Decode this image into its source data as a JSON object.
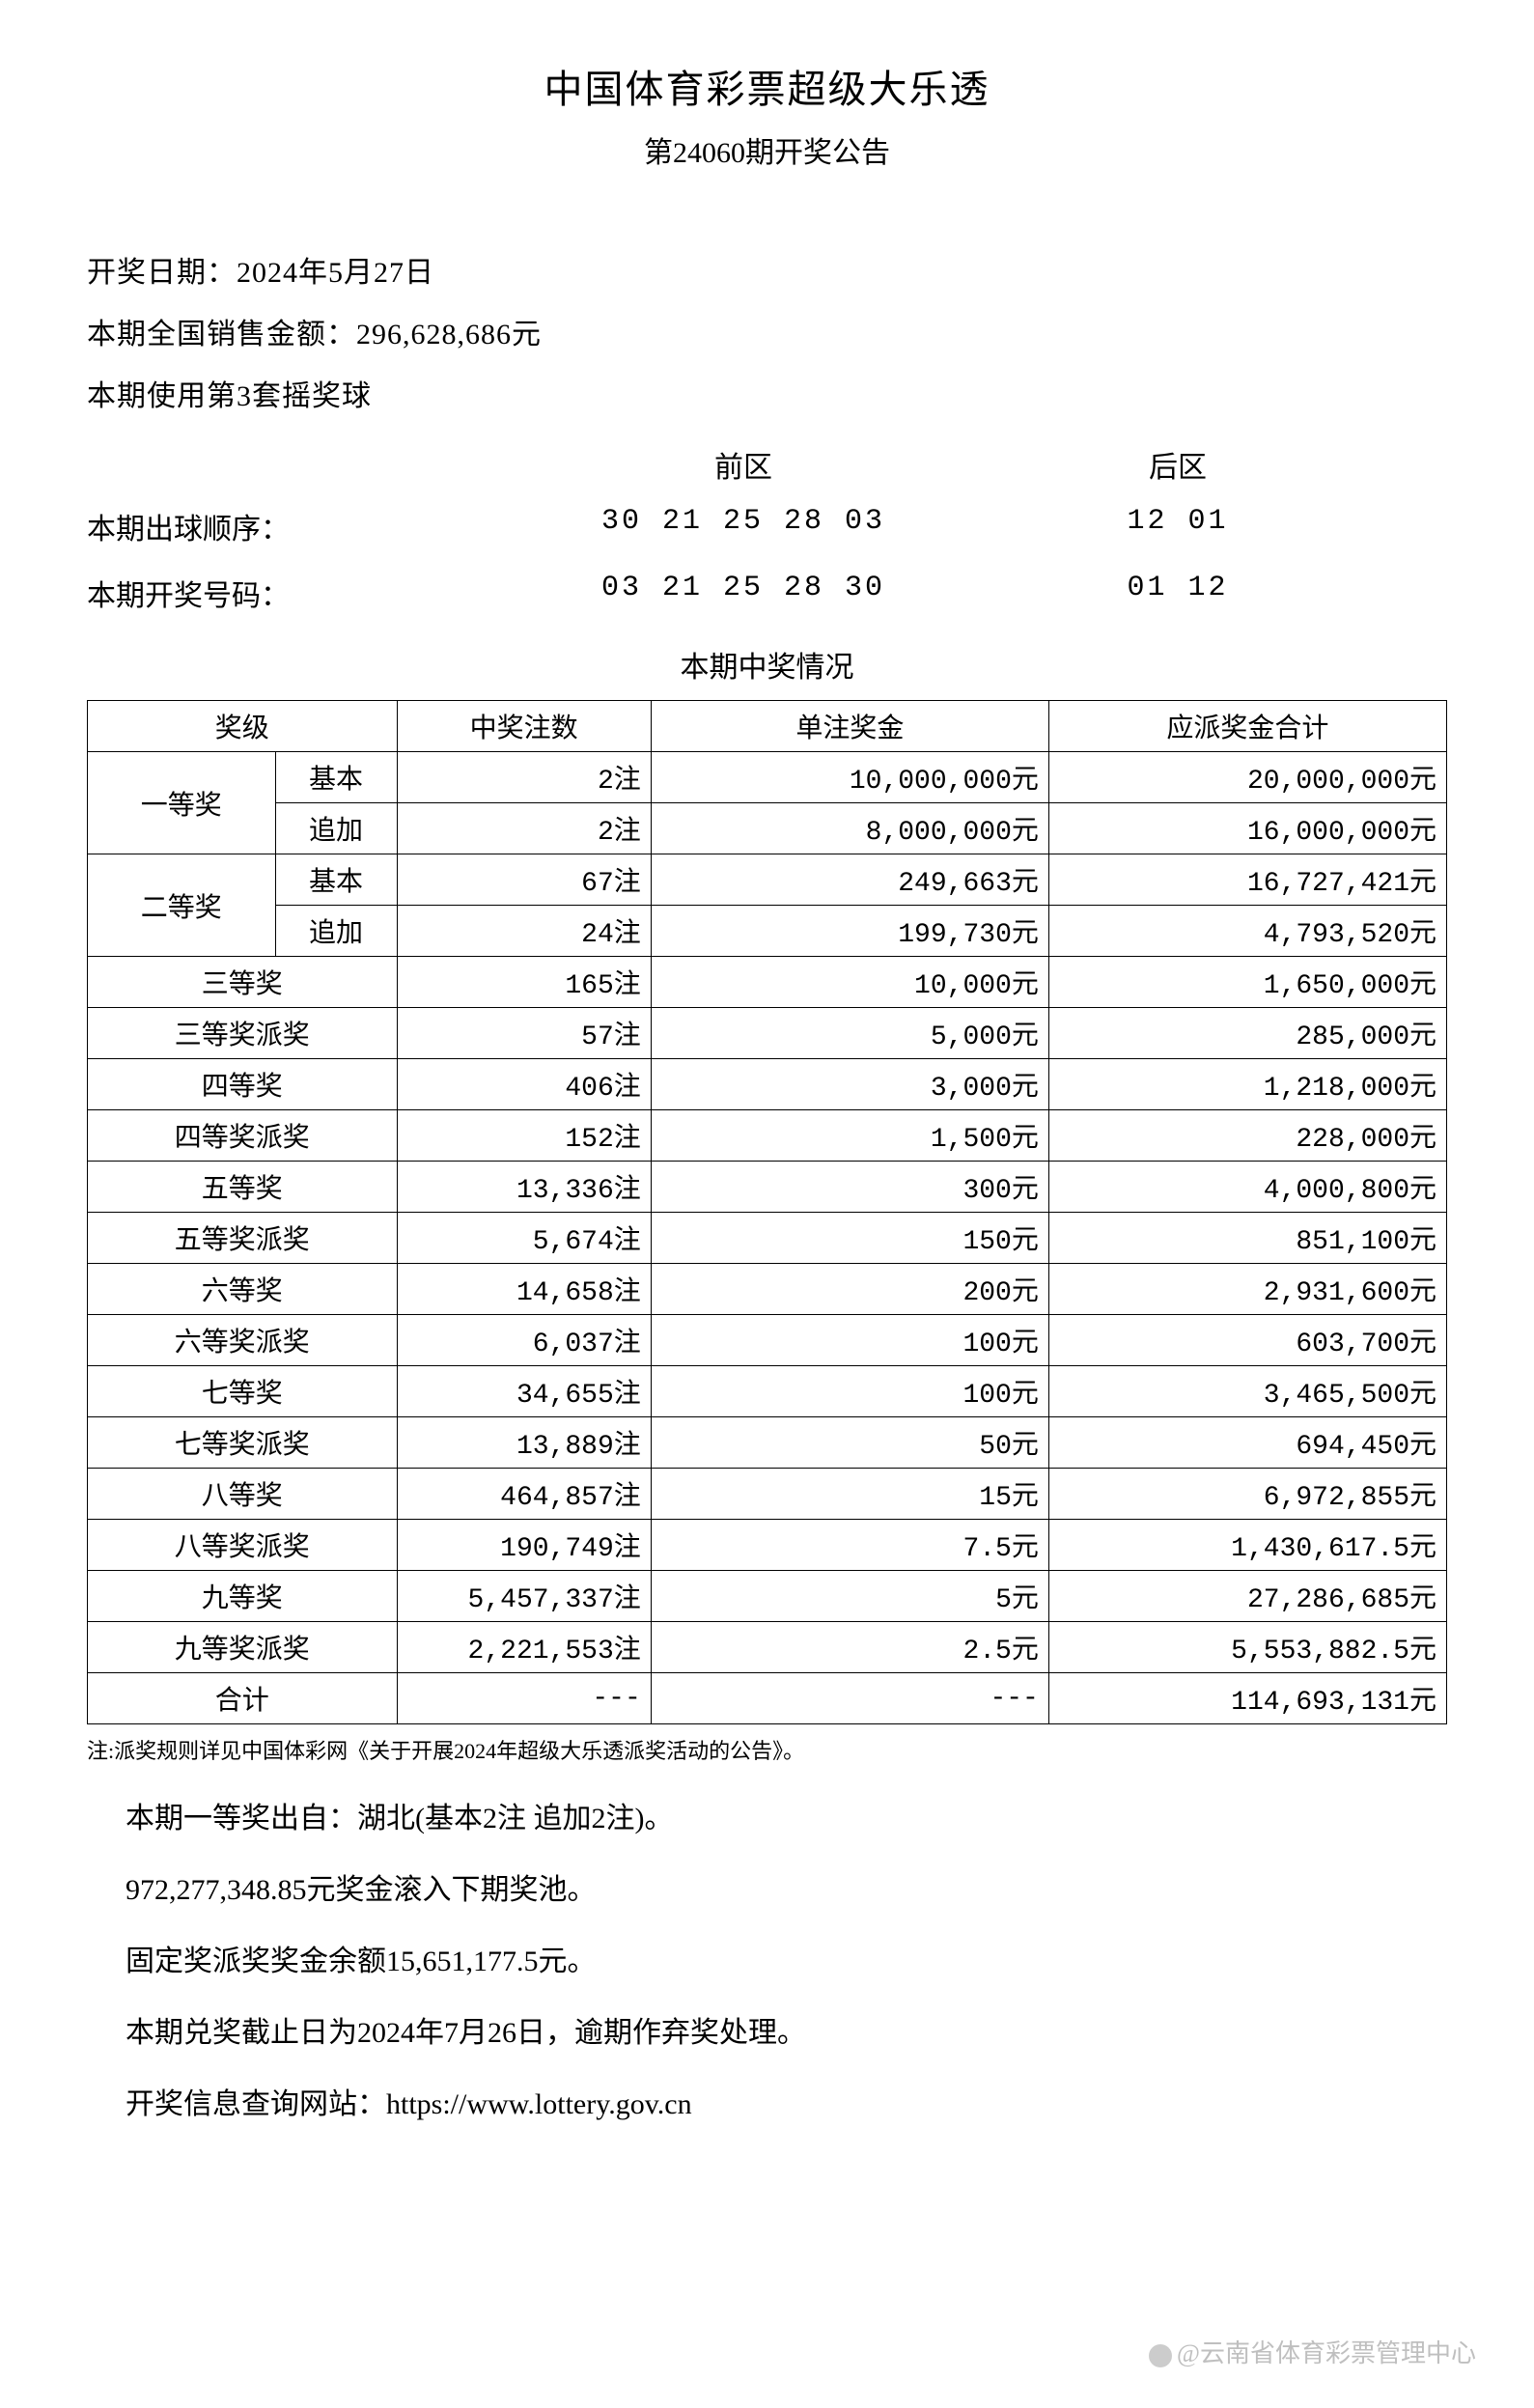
{
  "header": {
    "title": "中国体育彩票超级大乐透",
    "subtitle": "第24060期开奖公告"
  },
  "info": {
    "draw_date_label": "开奖日期：",
    "draw_date": "2024年5月27日",
    "sales_label": "本期全国销售金额：",
    "sales_amount": "296,628,686元",
    "ball_set_label": "本期使用第3套摇奖球"
  },
  "numbers": {
    "front_label": "前区",
    "back_label": "后区",
    "order_label": "本期出球顺序：",
    "order_front": "30 21 25 28 03",
    "order_back": "12 01",
    "winning_label": "本期开奖号码：",
    "winning_front": "03 21 25 28 30",
    "winning_back": "01 12"
  },
  "prize_table": {
    "title": "本期中奖情况",
    "columns": {
      "level": "奖级",
      "count": "中奖注数",
      "amount": "单注奖金",
      "total": "应派奖金合计"
    },
    "rows": [
      {
        "level": "一等奖",
        "sub": "基本",
        "count": "2注",
        "amount": "10,000,000元",
        "total": "20,000,000元",
        "rowspan": 2
      },
      {
        "level": "",
        "sub": "追加",
        "count": "2注",
        "amount": "8,000,000元",
        "total": "16,000,000元"
      },
      {
        "level": "二等奖",
        "sub": "基本",
        "count": "67注",
        "amount": "249,663元",
        "total": "16,727,421元",
        "rowspan": 2
      },
      {
        "level": "",
        "sub": "追加",
        "count": "24注",
        "amount": "199,730元",
        "total": "4,793,520元"
      },
      {
        "level": "三等奖",
        "count": "165注",
        "amount": "10,000元",
        "total": "1,650,000元"
      },
      {
        "level": "三等奖派奖",
        "count": "57注",
        "amount": "5,000元",
        "total": "285,000元"
      },
      {
        "level": "四等奖",
        "count": "406注",
        "amount": "3,000元",
        "total": "1,218,000元"
      },
      {
        "level": "四等奖派奖",
        "count": "152注",
        "amount": "1,500元",
        "total": "228,000元"
      },
      {
        "level": "五等奖",
        "count": "13,336注",
        "amount": "300元",
        "total": "4,000,800元"
      },
      {
        "level": "五等奖派奖",
        "count": "5,674注",
        "amount": "150元",
        "total": "851,100元"
      },
      {
        "level": "六等奖",
        "count": "14,658注",
        "amount": "200元",
        "total": "2,931,600元"
      },
      {
        "level": "六等奖派奖",
        "count": "6,037注",
        "amount": "100元",
        "total": "603,700元"
      },
      {
        "level": "七等奖",
        "count": "34,655注",
        "amount": "100元",
        "total": "3,465,500元"
      },
      {
        "level": "七等奖派奖",
        "count": "13,889注",
        "amount": "50元",
        "total": "694,450元"
      },
      {
        "level": "八等奖",
        "count": "464,857注",
        "amount": "15元",
        "total": "6,972,855元"
      },
      {
        "level": "八等奖派奖",
        "count": "190,749注",
        "amount": "7.5元",
        "total": "1,430,617.5元"
      },
      {
        "level": "九等奖",
        "count": "5,457,337注",
        "amount": "5元",
        "total": "27,286,685元"
      },
      {
        "level": "九等奖派奖",
        "count": "2,221,553注",
        "amount": "2.5元",
        "total": "5,553,882.5元"
      },
      {
        "level": "合计",
        "count": "---",
        "amount": "---",
        "total": "114,693,131元"
      }
    ]
  },
  "note": "注:派奖规则详见中国体彩网《关于开展2024年超级大乐透派奖活动的公告》。",
  "footer": {
    "line1": "本期一等奖出自：湖北(基本2注 追加2注)。",
    "line2": "972,277,348.85元奖金滚入下期奖池。",
    "line3": "固定奖派奖奖金余额15,651,177.5元。",
    "line4": "本期兑奖截止日为2024年7月26日，逾期作弃奖处理。",
    "line5": "开奖信息查询网站：https://www.lottery.gov.cn"
  },
  "watermark": "@云南省体育彩票管理中心",
  "styling": {
    "background_color": "#ffffff",
    "text_color": "#000000",
    "border_color": "#000000",
    "title_fontsize": 40,
    "body_fontsize": 28,
    "note_fontsize": 22,
    "watermark_color": "rgba(128,128,128,0.5)"
  }
}
